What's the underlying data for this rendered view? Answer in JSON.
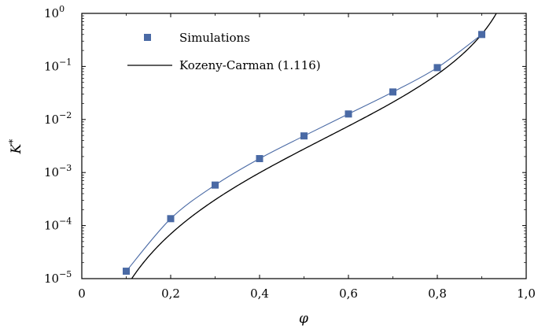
{
  "chart_data": {
    "type": "line",
    "title": "",
    "xlabel": "φ",
    "ylabel": "K*",
    "x_scale": "linear",
    "y_scale": "log",
    "xlim": [
      0,
      1.0
    ],
    "ylim": [
      1e-05,
      1
    ],
    "x_ticks": [
      {
        "value": 0.0,
        "label": "0"
      },
      {
        "value": 0.2,
        "label": "0,2"
      },
      {
        "value": 0.4,
        "label": "0,4"
      },
      {
        "value": 0.6,
        "label": "0,6"
      },
      {
        "value": 0.8,
        "label": "0,8"
      },
      {
        "value": 1.0,
        "label": "1,0"
      }
    ],
    "y_ticks": [
      {
        "value": 1e-05,
        "base": "10",
        "exp": "−5"
      },
      {
        "value": 0.0001,
        "base": "10",
        "exp": "−4"
      },
      {
        "value": 0.001,
        "base": "10",
        "exp": "−3"
      },
      {
        "value": 0.01,
        "base": "10",
        "exp": "−2"
      },
      {
        "value": 0.1,
        "base": "10",
        "exp": "−1"
      },
      {
        "value": 1,
        "base": "10",
        "exp": "0"
      }
    ],
    "grid": false,
    "legend_position": "top-left",
    "series": [
      {
        "name": "Simulations",
        "kind": "markers-with-line",
        "marker": "square",
        "color": "#4a6aa5",
        "x": [
          0.1,
          0.2,
          0.3,
          0.4,
          0.5,
          0.6,
          0.7,
          0.8,
          0.9
        ],
        "y": [
          1.38e-05,
          0.000135,
          0.00058,
          0.00183,
          0.0049,
          0.0127,
          0.033,
          0.095,
          0.4
        ]
      },
      {
        "name": "Kozeny-Carman (1.116)",
        "kind": "line",
        "color": "#000000",
        "function": "phi^3 / (180 * (1 - phi)^2)"
      }
    ]
  }
}
